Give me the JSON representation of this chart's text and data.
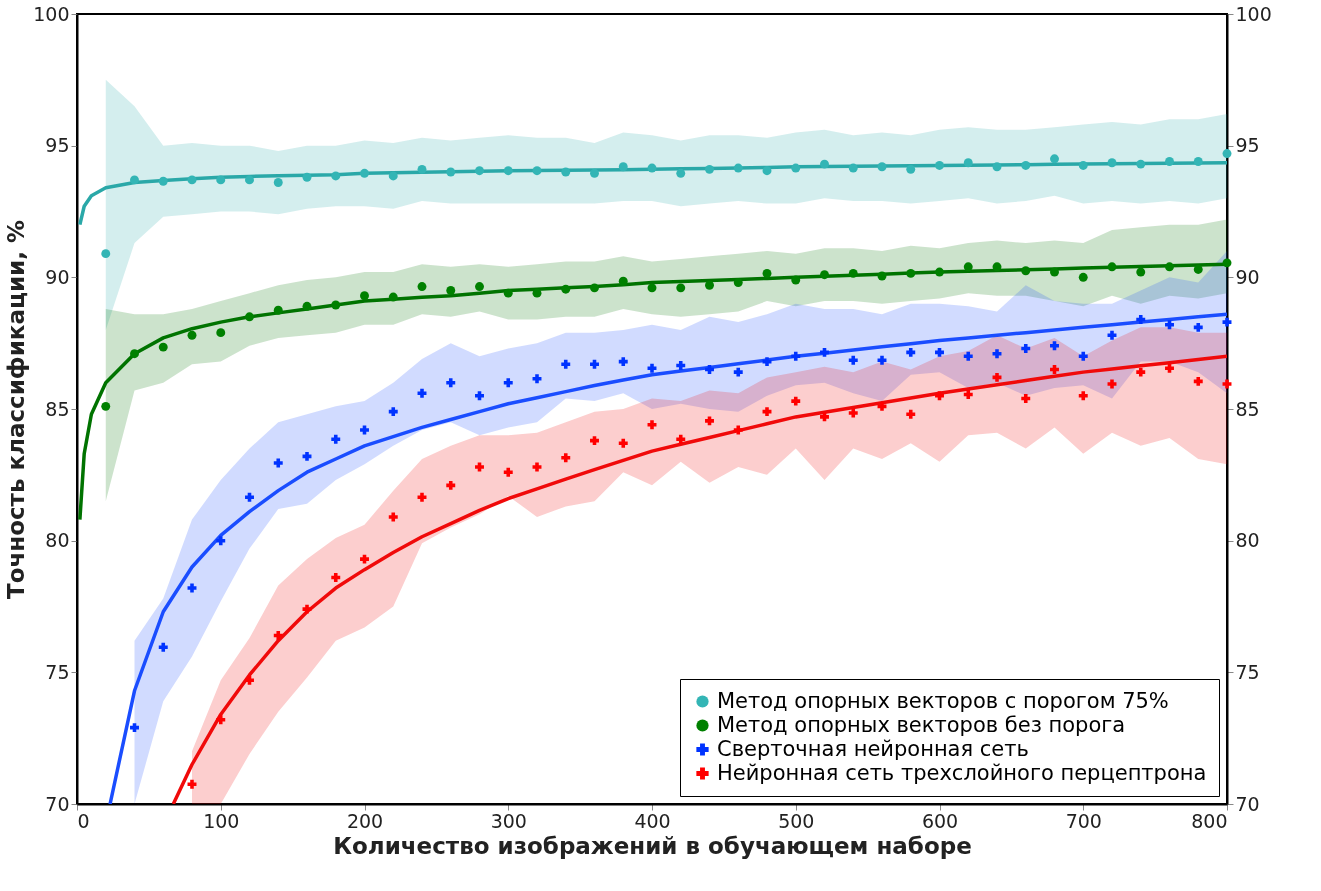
{
  "chart_data": {
    "type": "scatter",
    "xlabel": "Количество изображений в обучающем наборе",
    "ylabel": "Точность классификации, %",
    "xlim": [
      0,
      800
    ],
    "xticks": [
      0,
      100,
      200,
      300,
      400,
      500,
      600,
      700,
      800
    ],
    "ylim": [
      70,
      100
    ],
    "yticks": [
      70,
      75,
      80,
      85,
      90,
      95,
      100
    ],
    "y2lim": [
      70,
      100
    ],
    "y2ticks": [
      70,
      75,
      80,
      85,
      90,
      95,
      100
    ],
    "legend": "bottom right",
    "series": [
      {
        "name": "Метод опорных векторов с порогом 75%",
        "color": "#33b5b5",
        "marker": "circle",
        "x": [
          20,
          40,
          60,
          80,
          100,
          120,
          140,
          160,
          180,
          200,
          220,
          240,
          260,
          280,
          300,
          320,
          340,
          360,
          380,
          400,
          420,
          440,
          460,
          480,
          500,
          520,
          540,
          560,
          580,
          600,
          620,
          640,
          660,
          680,
          700,
          720,
          740,
          760,
          780,
          800
        ],
        "values": [
          90.9,
          93.7,
          93.65,
          93.7,
          93.7,
          93.7,
          93.6,
          93.8,
          93.85,
          93.95,
          93.85,
          94.1,
          94.0,
          94.05,
          94.05,
          94.05,
          94.0,
          93.95,
          94.2,
          94.15,
          93.95,
          94.1,
          94.15,
          94.05,
          94.15,
          94.3,
          94.15,
          94.2,
          94.1,
          94.25,
          94.35,
          94.2,
          94.25,
          94.5,
          94.25,
          94.35,
          94.3,
          94.4,
          94.4,
          94.7
        ]
      },
      {
        "name": "Метод опорных векторов без порога",
        "color": "#008000",
        "marker": "circle",
        "x": [
          20,
          40,
          60,
          80,
          100,
          120,
          140,
          160,
          180,
          200,
          220,
          240,
          260,
          280,
          300,
          320,
          340,
          360,
          380,
          400,
          420,
          440,
          460,
          480,
          500,
          520,
          540,
          560,
          580,
          600,
          620,
          640,
          660,
          680,
          700,
          720,
          740,
          760,
          780,
          800
        ],
        "values": [
          85.1,
          87.1,
          87.35,
          87.8,
          87.9,
          88.5,
          88.75,
          88.9,
          88.95,
          89.3,
          89.25,
          89.65,
          89.5,
          89.65,
          89.4,
          89.4,
          89.55,
          89.6,
          89.85,
          89.6,
          89.6,
          89.7,
          89.8,
          90.15,
          89.9,
          90.1,
          90.15,
          90.05,
          90.15,
          90.2,
          90.4,
          90.4,
          90.25,
          90.2,
          90.0,
          90.4,
          90.2,
          90.4,
          90.3,
          90.55
        ]
      },
      {
        "name": "Сверточная нейронная сеть",
        "color": "#0033ff",
        "marker": "cross",
        "x": [
          40,
          60,
          80,
          100,
          120,
          140,
          160,
          180,
          200,
          220,
          240,
          260,
          280,
          300,
          320,
          340,
          360,
          380,
          400,
          420,
          440,
          460,
          480,
          500,
          520,
          540,
          560,
          580,
          600,
          620,
          640,
          660,
          680,
          700,
          720,
          740,
          760,
          780,
          800
        ],
        "values": [
          72.9,
          75.95,
          78.2,
          80.0,
          81.65,
          82.95,
          83.2,
          83.85,
          84.2,
          84.9,
          85.6,
          86.0,
          85.5,
          86.0,
          86.15,
          86.7,
          86.7,
          86.8,
          86.55,
          86.65,
          86.5,
          86.4,
          86.8,
          87.0,
          87.15,
          86.85,
          86.85,
          87.15,
          87.15,
          87.0,
          87.1,
          87.3,
          87.4,
          87.0,
          87.8,
          88.4,
          88.2,
          88.1,
          88.3
        ]
      },
      {
        "name": "Нейронная сеть трехслойного перцептрона",
        "color": "#ff0000",
        "marker": "cross",
        "x": [
          80,
          100,
          120,
          140,
          160,
          180,
          200,
          220,
          240,
          260,
          280,
          300,
          320,
          340,
          360,
          380,
          400,
          420,
          440,
          460,
          480,
          500,
          520,
          540,
          560,
          580,
          600,
          620,
          640,
          660,
          680,
          700,
          720,
          740,
          760,
          780,
          800
        ],
        "values": [
          70.75,
          73.2,
          74.7,
          76.4,
          77.4,
          78.6,
          79.3,
          80.9,
          81.65,
          82.1,
          82.8,
          82.6,
          82.8,
          83.15,
          83.8,
          83.7,
          84.4,
          83.85,
          84.55,
          84.2,
          84.9,
          85.3,
          84.7,
          84.85,
          85.1,
          84.8,
          85.5,
          85.55,
          86.2,
          85.4,
          86.5,
          85.5,
          85.95,
          86.4,
          86.55,
          86.05,
          85.95
        ]
      },
      {
        "type": "line",
        "color": "#2aa8a8",
        "x": [
          2,
          5,
          10,
          20,
          40,
          60,
          80,
          100,
          120,
          140,
          160,
          180,
          200,
          220,
          240,
          260,
          280,
          300,
          320,
          340,
          360,
          380,
          400,
          420,
          440,
          460,
          480,
          500,
          520,
          540,
          560,
          580,
          600,
          620,
          640,
          660,
          680,
          700,
          720,
          740,
          760,
          780,
          800
        ],
        "values": [
          92.0,
          92.7,
          93.1,
          93.4,
          93.6,
          93.68,
          93.74,
          93.8,
          93.83,
          93.86,
          93.88,
          93.9,
          93.95,
          93.97,
          93.99,
          94.01,
          94.03,
          94.05,
          94.06,
          94.07,
          94.08,
          94.09,
          94.1,
          94.12,
          94.13,
          94.15,
          94.17,
          94.2,
          94.21,
          94.22,
          94.23,
          94.24,
          94.25,
          94.26,
          94.27,
          94.28,
          94.29,
          94.3,
          94.31,
          94.32,
          94.33,
          94.34,
          94.35
        ],
        "upper": [
          null,
          null,
          null,
          97.5,
          96.5,
          95.0,
          95.1,
          95.0,
          95.0,
          94.8,
          95.0,
          95.0,
          95.2,
          95.1,
          95.3,
          95.2,
          95.3,
          95.4,
          95.3,
          95.3,
          95.1,
          95.5,
          95.4,
          95.2,
          95.4,
          95.4,
          95.3,
          95.5,
          95.6,
          95.4,
          95.5,
          95.4,
          95.6,
          95.7,
          95.6,
          95.6,
          95.7,
          95.8,
          95.9,
          95.8,
          96.0,
          96.0,
          96.2
        ],
        "lower": [
          null,
          null,
          null,
          88.0,
          91.3,
          92.3,
          92.4,
          92.5,
          92.5,
          92.4,
          92.6,
          92.7,
          92.7,
          92.6,
          92.9,
          92.8,
          92.8,
          92.8,
          92.8,
          92.8,
          92.8,
          92.9,
          92.9,
          92.7,
          92.8,
          92.9,
          92.8,
          92.8,
          93.0,
          92.9,
          92.9,
          92.8,
          92.9,
          93.0,
          92.8,
          92.9,
          93.1,
          92.8,
          92.9,
          92.8,
          92.9,
          92.8,
          93.0
        ]
      },
      {
        "type": "line",
        "color": "#007300",
        "x": [
          2,
          5,
          10,
          20,
          40,
          60,
          80,
          100,
          120,
          140,
          160,
          180,
          200,
          220,
          240,
          260,
          280,
          300,
          320,
          340,
          360,
          380,
          400,
          420,
          440,
          460,
          480,
          500,
          520,
          540,
          560,
          580,
          600,
          620,
          640,
          660,
          680,
          700,
          720,
          740,
          760,
          780,
          800
        ],
        "values": [
          80.8,
          83.3,
          84.8,
          86.0,
          87.1,
          87.7,
          88.05,
          88.3,
          88.5,
          88.65,
          88.8,
          88.95,
          89.1,
          89.17,
          89.24,
          89.3,
          89.4,
          89.5,
          89.55,
          89.6,
          89.65,
          89.72,
          89.8,
          89.84,
          89.88,
          89.92,
          89.96,
          90.0,
          90.04,
          90.08,
          90.12,
          90.16,
          90.2,
          90.23,
          90.26,
          90.29,
          90.32,
          90.35,
          90.38,
          90.41,
          90.44,
          90.47,
          90.5
        ],
        "upper": [
          null,
          null,
          null,
          88.8,
          88.6,
          88.6,
          88.8,
          89.1,
          89.4,
          89.7,
          89.9,
          90.0,
          90.2,
          90.2,
          90.5,
          90.4,
          90.5,
          90.4,
          90.5,
          90.6,
          90.6,
          90.8,
          90.6,
          90.7,
          90.8,
          90.9,
          91.0,
          90.9,
          91.1,
          91.1,
          91.0,
          91.2,
          91.1,
          91.3,
          91.4,
          91.3,
          91.4,
          91.3,
          91.8,
          91.9,
          92.0,
          92.0,
          92.2
        ],
        "lower": [
          null,
          null,
          null,
          81.5,
          85.7,
          86.0,
          86.7,
          86.8,
          87.4,
          87.7,
          87.8,
          87.9,
          88.2,
          88.2,
          88.6,
          88.5,
          88.7,
          88.4,
          88.4,
          88.5,
          88.5,
          88.8,
          88.6,
          88.5,
          88.6,
          88.7,
          89.1,
          88.9,
          89.1,
          89.1,
          89.0,
          89.1,
          89.2,
          89.4,
          89.3,
          89.3,
          89.1,
          88.9,
          89.3,
          89.0,
          89.3,
          89.2,
          89.4
        ]
      },
      {
        "type": "line",
        "color": "#1a4dff",
        "x": [
          23,
          40,
          60,
          80,
          100,
          120,
          140,
          160,
          180,
          200,
          220,
          240,
          260,
          280,
          300,
          320,
          340,
          360,
          380,
          400,
          420,
          440,
          460,
          480,
          500,
          520,
          540,
          560,
          580,
          600,
          620,
          640,
          660,
          680,
          700,
          720,
          740,
          760,
          780,
          800
        ],
        "values": [
          70.0,
          74.3,
          77.3,
          79.0,
          80.2,
          81.1,
          81.9,
          82.6,
          83.1,
          83.6,
          83.95,
          84.3,
          84.6,
          84.9,
          85.2,
          85.43,
          85.66,
          85.89,
          86.1,
          86.3,
          86.44,
          86.58,
          86.72,
          86.86,
          87.0,
          87.12,
          87.24,
          87.36,
          87.48,
          87.6,
          87.7,
          87.8,
          87.9,
          88.0,
          88.1,
          88.2,
          88.3,
          88.4,
          88.5,
          88.6
        ],
        "upper": [
          null,
          76.2,
          77.8,
          80.8,
          82.3,
          83.5,
          84.5,
          84.8,
          85.1,
          85.3,
          86.0,
          86.9,
          87.5,
          87.0,
          87.3,
          87.5,
          87.9,
          87.9,
          88.0,
          88.2,
          88.0,
          88.5,
          88.3,
          88.6,
          89.0,
          88.8,
          88.8,
          88.6,
          89.0,
          89.0,
          88.9,
          88.7,
          89.7,
          89.1,
          89.0,
          89.0,
          89.5,
          90.0,
          89.8,
          91.0
        ],
        "lower": [
          null,
          70.0,
          73.9,
          75.6,
          77.7,
          79.7,
          81.2,
          81.4,
          82.3,
          82.9,
          83.6,
          84.2,
          84.5,
          84.0,
          84.3,
          84.5,
          85.4,
          85.3,
          85.6,
          85.0,
          85.2,
          85.0,
          84.9,
          85.5,
          85.9,
          86.0,
          85.6,
          85.3,
          86.3,
          86.4,
          85.8,
          86.0,
          85.5,
          85.8,
          85.9,
          85.4,
          86.8,
          86.8,
          86.4,
          85.6
        ]
      },
      {
        "type": "line",
        "color": "#f00a0a",
        "x": [
          67,
          80,
          100,
          120,
          140,
          160,
          180,
          200,
          220,
          240,
          260,
          280,
          300,
          320,
          340,
          360,
          380,
          400,
          420,
          440,
          460,
          480,
          500,
          520,
          540,
          560,
          580,
          600,
          620,
          640,
          660,
          680,
          700,
          720,
          740,
          760,
          780,
          800
        ],
        "values": [
          70.0,
          71.5,
          73.4,
          74.9,
          76.2,
          77.3,
          78.2,
          78.9,
          79.55,
          80.15,
          80.65,
          81.15,
          81.6,
          81.97,
          82.34,
          82.7,
          83.05,
          83.4,
          83.66,
          83.92,
          84.18,
          84.44,
          84.7,
          84.88,
          85.06,
          85.24,
          85.42,
          85.6,
          85.76,
          85.92,
          86.08,
          86.24,
          86.4,
          86.52,
          86.64,
          86.76,
          86.88,
          87.0
        ],
        "upper": [
          null,
          72.0,
          74.7,
          76.3,
          78.3,
          79.3,
          80.1,
          80.6,
          81.9,
          83.1,
          83.6,
          84.0,
          84.0,
          84.1,
          84.5,
          84.9,
          85.0,
          85.4,
          85.3,
          85.7,
          85.6,
          86.2,
          86.4,
          86.6,
          86.4,
          86.8,
          86.5,
          87.0,
          87.2,
          87.8,
          87.3,
          87.7,
          87.0,
          87.6,
          88.1,
          88.1,
          87.9,
          87.9
        ],
        "lower": [
          null,
          70.0,
          70.0,
          71.9,
          73.5,
          74.8,
          76.2,
          76.7,
          77.5,
          79.9,
          80.5,
          81.0,
          81.7,
          80.9,
          81.3,
          81.5,
          82.6,
          82.1,
          83.0,
          82.2,
          82.8,
          82.5,
          83.5,
          82.3,
          83.5,
          83.1,
          83.7,
          83.0,
          84.0,
          84.1,
          83.5,
          84.3,
          83.3,
          84.1,
          83.6,
          83.9,
          83.1,
          82.9
        ]
      }
    ]
  }
}
